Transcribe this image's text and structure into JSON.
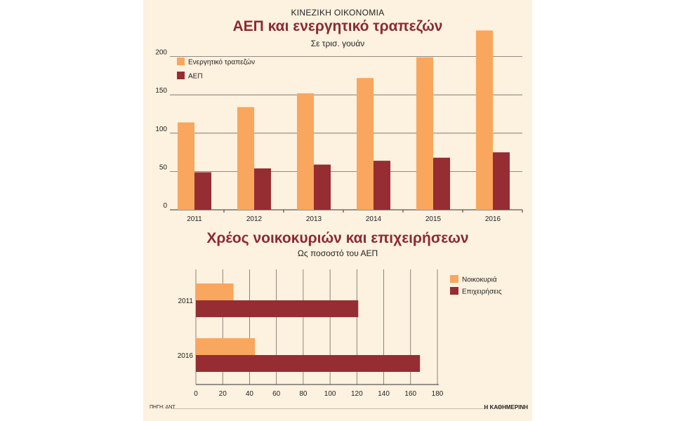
{
  "header": {
    "kicker": "ΚΙΝΕΖΙΚΗ ΟΙΚΟΝΟΜΙΑ"
  },
  "footer": {
    "source": "ΠΗΓΗ: ΔΝΤ",
    "brand": "Η ΚΑΘΗΜΕΡΙΝΗ"
  },
  "colors": {
    "orange": "#f9a65e",
    "darkred": "#962d33",
    "background": "#fdf1df",
    "title": "#8b2a31"
  },
  "chart_data": [
    {
      "type": "bar",
      "title": "ΑΕΠ και ενεργητικό τραπεζών",
      "subtitle": "Σε τρισ. γουάν",
      "categories": [
        "2011",
        "2012",
        "2013",
        "2014",
        "2015",
        "2016"
      ],
      "series": [
        {
          "name": "Ενεργητικό τραπεζών",
          "color": "#f9a65e",
          "values": [
            114,
            134,
            152,
            172,
            199,
            234
          ]
        },
        {
          "name": "ΑΕΠ",
          "color": "#962d33",
          "values": [
            49,
            54,
            59,
            64,
            68,
            75
          ]
        }
      ],
      "ylim": [
        0,
        250
      ],
      "yticks": [
        0,
        50,
        100,
        150,
        200
      ],
      "grid": true,
      "legend": "top-left"
    },
    {
      "type": "bar",
      "orientation": "horizontal",
      "title": "Χρέος νοικοκυριών και επιχειρήσεων",
      "subtitle": "Ως ποσοστό του ΑΕΠ",
      "categories": [
        "2011",
        "2016"
      ],
      "series": [
        {
          "name": "Νοικοκυριά",
          "color": "#f9a65e",
          "values": [
            28,
            44
          ]
        },
        {
          "name": "Επιχειρήσεις",
          "color": "#962d33",
          "values": [
            121,
            167
          ]
        }
      ],
      "xlim": [
        0,
        180
      ],
      "xticks": [
        0,
        20,
        40,
        60,
        80,
        100,
        120,
        140,
        160,
        180
      ],
      "grid": true,
      "legend": "top-right"
    }
  ]
}
